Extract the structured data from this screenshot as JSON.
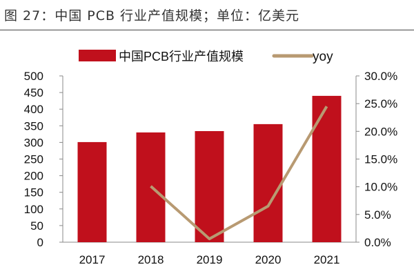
{
  "title": "图 27：中国 PCB 行业产值规模；单位：亿美元",
  "chart_data": {
    "type": "bar+line",
    "categories": [
      "2017",
      "2018",
      "2019",
      "2020",
      "2021"
    ],
    "series": [
      {
        "name": "中国PCB行业产值规模",
        "type": "bar",
        "axis": "left",
        "color": "#C0101C",
        "values": [
          301,
          330,
          334,
          355,
          440
        ]
      },
      {
        "name": "yoy",
        "type": "line",
        "axis": "right",
        "color": "#B89A72",
        "values": [
          null,
          10.1,
          0.6,
          6.5,
          24.5
        ]
      }
    ],
    "left_axis": {
      "ylim": [
        0,
        500
      ],
      "ticks": [
        "0",
        "50",
        "100",
        "150",
        "200",
        "250",
        "300",
        "350",
        "400",
        "450",
        "500"
      ]
    },
    "right_axis": {
      "ylim": [
        0,
        30
      ],
      "ticks": [
        "0.0%",
        "5.0%",
        "10.0%",
        "15.0%",
        "20.0%",
        "25.0%",
        "30.0%"
      ]
    },
    "legend": "top",
    "grid": false
  }
}
